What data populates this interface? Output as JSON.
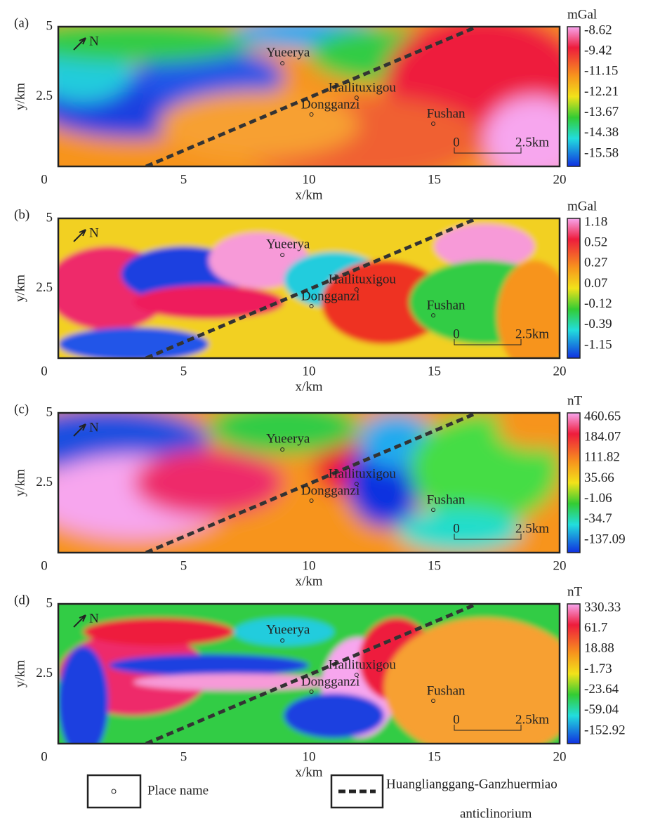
{
  "chart_data": [
    {
      "type": "heatmap",
      "title": "(a)",
      "colorbar_label": "mGal",
      "colorbar_ticks": [
        -8.62,
        -9.42,
        -11.15,
        -12.21,
        -13.67,
        -14.38,
        -15.58
      ],
      "xlabel": "x/km",
      "ylabel": "y/km",
      "xlim": [
        0,
        20
      ],
      "ylim": [
        0,
        5
      ],
      "xticks": [
        0,
        5,
        10,
        15,
        20
      ],
      "yticks": [
        2.5,
        5
      ]
    },
    {
      "type": "heatmap",
      "title": "(b)",
      "colorbar_label": "mGal",
      "colorbar_ticks": [
        1.18,
        0.52,
        0.27,
        0.07,
        -0.12,
        -0.39,
        -1.15
      ],
      "xlabel": "x/km",
      "ylabel": "y/km",
      "xlim": [
        0,
        20
      ],
      "ylim": [
        0,
        5
      ],
      "xticks": [
        0,
        5,
        10,
        15,
        20
      ],
      "yticks": [
        2.5,
        5
      ]
    },
    {
      "type": "heatmap",
      "title": "(c)",
      "colorbar_label": "nT",
      "colorbar_ticks": [
        460.65,
        184.07,
        111.82,
        35.66,
        -1.06,
        -34.7,
        -137.09
      ],
      "xlabel": "x/km",
      "ylabel": "y/km",
      "xlim": [
        0,
        20
      ],
      "ylim": [
        0,
        5
      ],
      "xticks": [
        0,
        5,
        10,
        15,
        20
      ],
      "yticks": [
        2.5,
        5
      ]
    },
    {
      "type": "heatmap",
      "title": "(d)",
      "colorbar_label": "nT",
      "colorbar_ticks": [
        330.33,
        61.7,
        18.88,
        -1.73,
        -23.64,
        -59.04,
        -152.92
      ],
      "xlabel": "x/km",
      "ylabel": "y/km",
      "xlim": [
        0,
        20
      ],
      "ylim": [
        0,
        5
      ],
      "xticks": [
        0,
        5,
        10,
        15,
        20
      ],
      "yticks": [
        2.5,
        5
      ]
    }
  ],
  "map": {
    "north": "N",
    "scalebar": [
      "0",
      "2.5km"
    ],
    "places": [
      {
        "name": "Yueerya",
        "x": 8.94,
        "y": 3.69
      },
      {
        "name": "Hailituxigou",
        "x": 11.9,
        "y": 2.46
      },
      {
        "name": "Dongganzi",
        "x": 10.1,
        "y": 1.86
      },
      {
        "name": "Fushan",
        "x": 14.96,
        "y": 1.53
      }
    ],
    "anticlinorium": {
      "x": [
        3.5,
        16.7
      ],
      "y": [
        0,
        5
      ]
    }
  },
  "legend": {
    "place": "Place name",
    "anticlinorium": [
      "Huanglianggang-Ganzhuermiao",
      "anticlinorium"
    ]
  }
}
